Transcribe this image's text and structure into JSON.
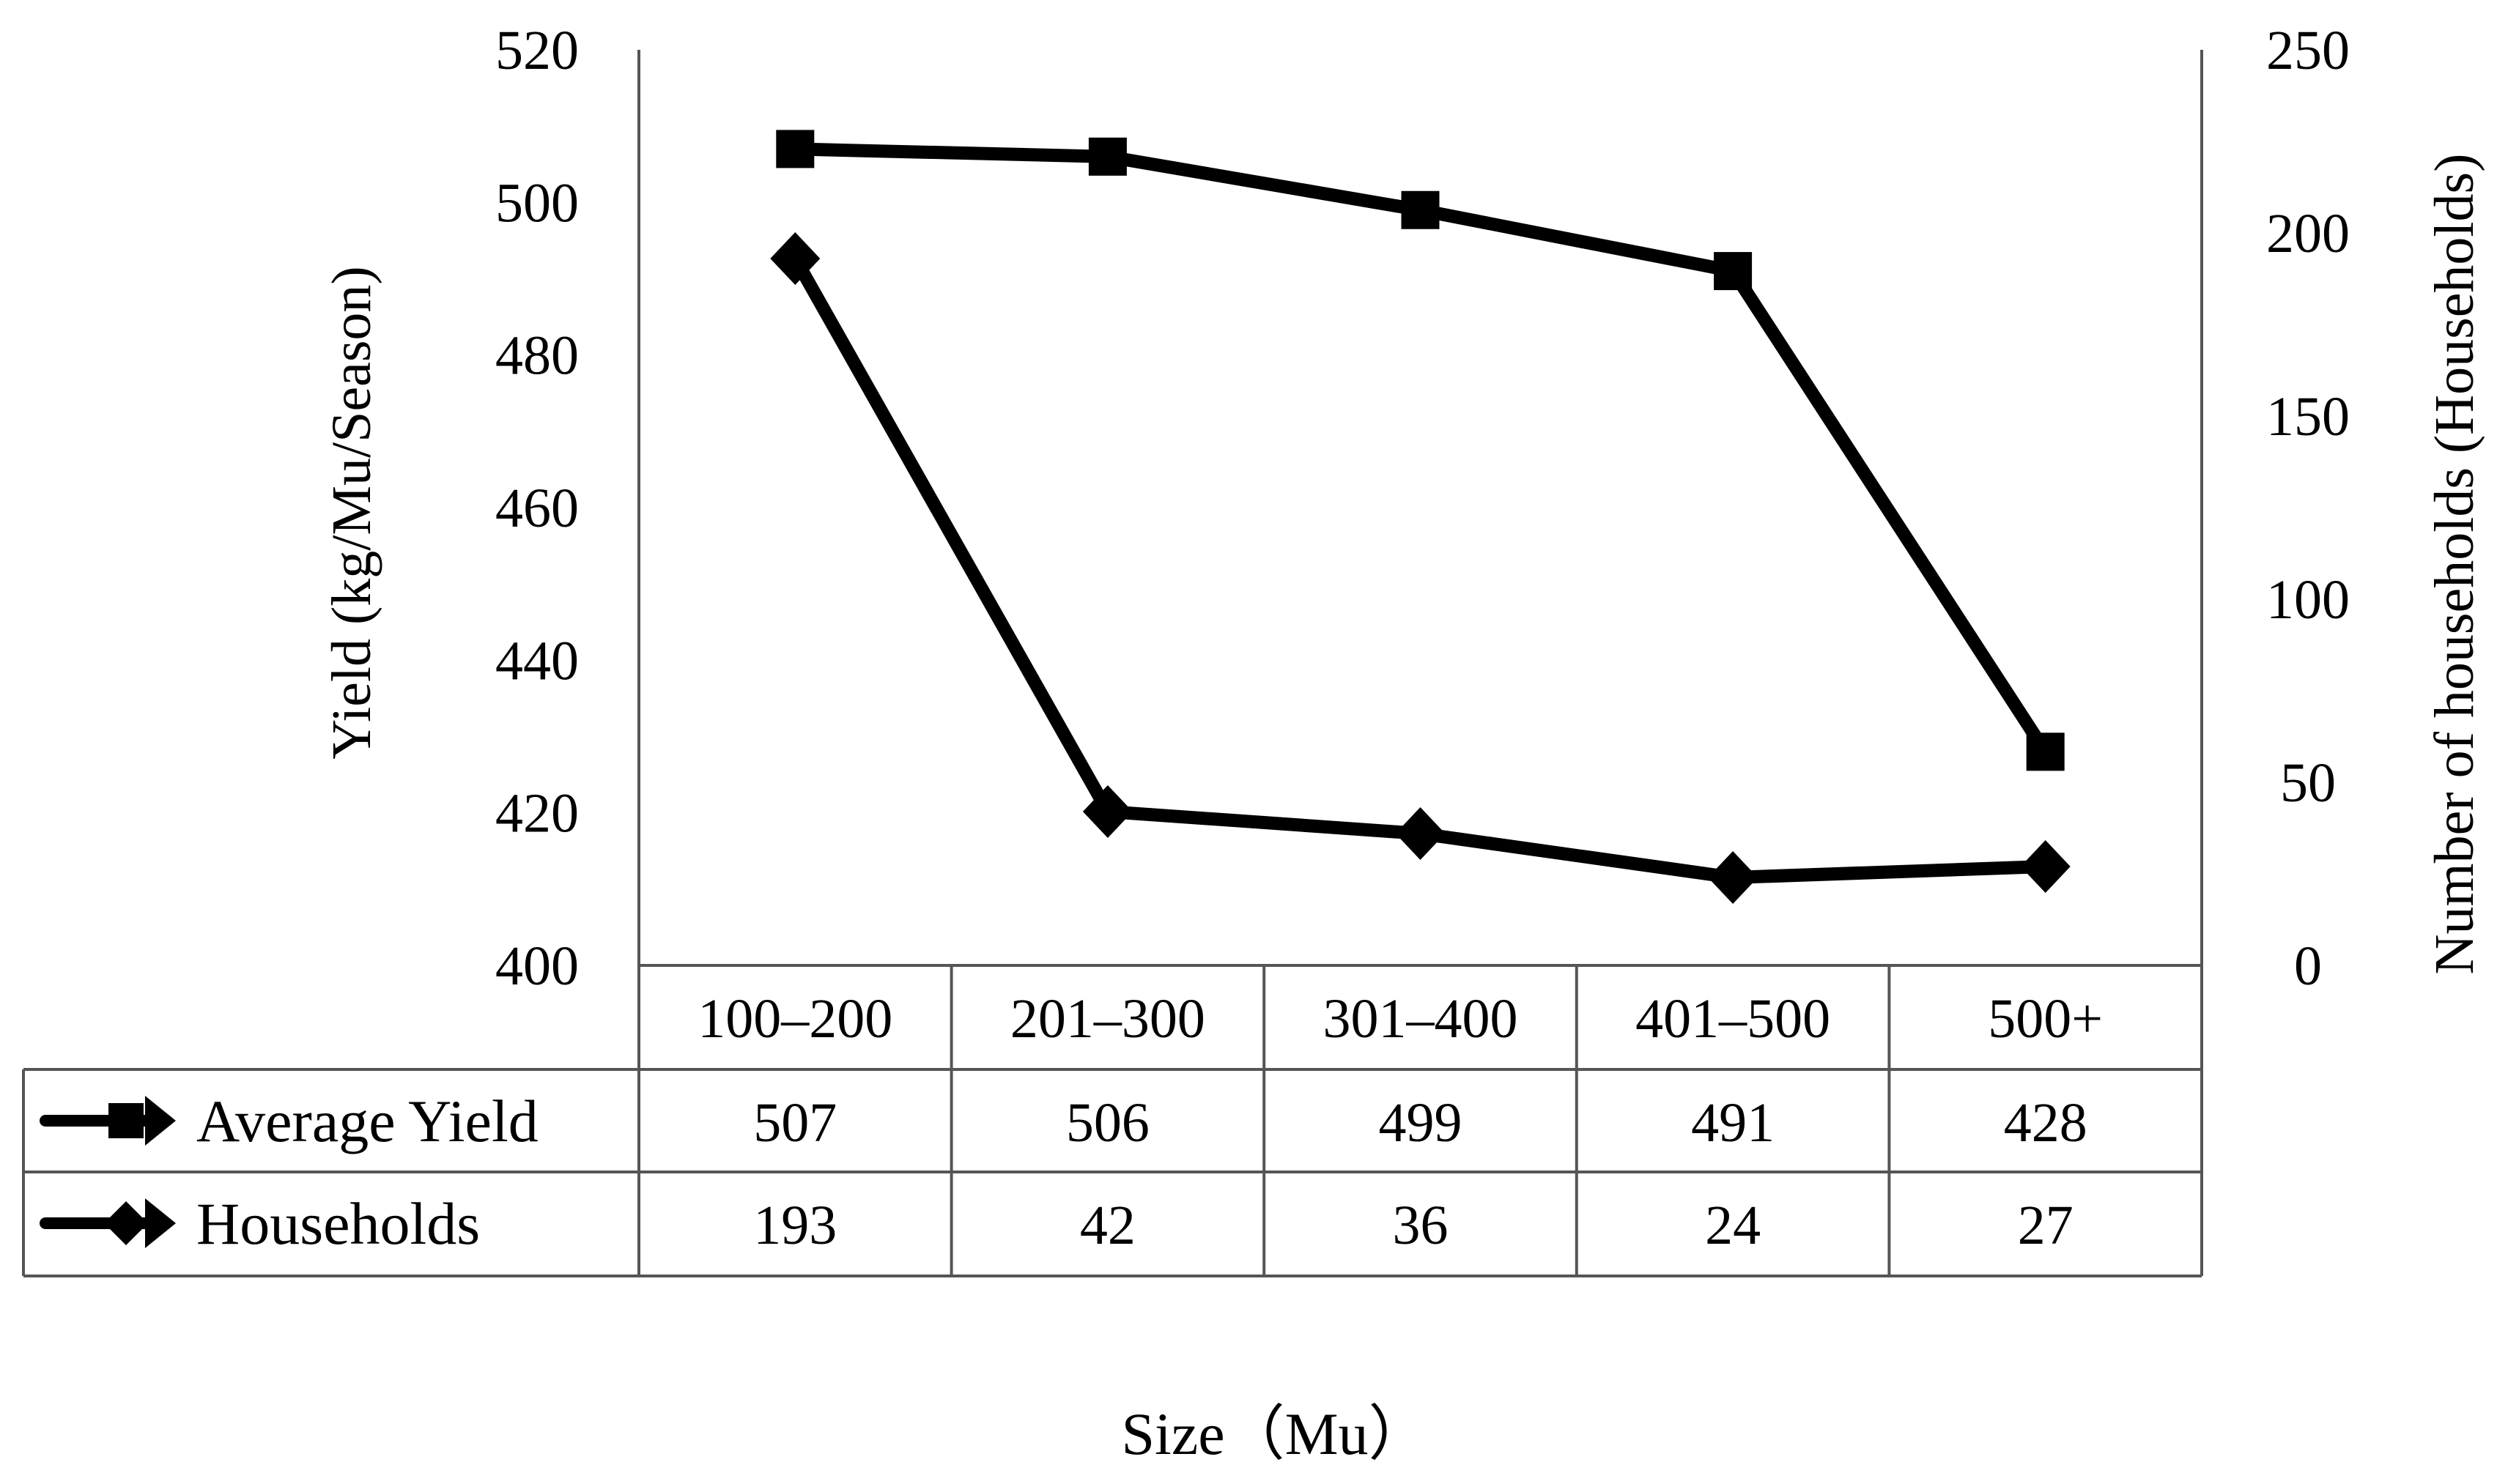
{
  "chart_data": {
    "type": "line",
    "categories": [
      "100–200",
      "201–300",
      "301–400",
      "401–500",
      "500+"
    ],
    "xlabel": "Size（Mu）",
    "y_left": {
      "label": "Yield (kg/Mu/Season)",
      "range": [
        400,
        520
      ],
      "ticks": [
        "400",
        "420",
        "440",
        "460",
        "480",
        "500",
        "520"
      ]
    },
    "y_right": {
      "label": "Number of households (Households)",
      "range": [
        0,
        250
      ],
      "ticks": [
        "0",
        "50",
        "100",
        "150",
        "200",
        "250"
      ]
    },
    "series": [
      {
        "name": "Average Yield",
        "axis": "left",
        "marker": "square",
        "values": [
          507,
          506,
          499,
          491,
          428
        ],
        "labels": [
          "507",
          "506",
          "499",
          "491",
          "428"
        ]
      },
      {
        "name": "Households",
        "axis": "right",
        "marker": "diamond",
        "values": [
          193,
          42,
          36,
          24,
          27
        ],
        "labels": [
          "193",
          "42",
          "36",
          "24",
          "27"
        ]
      }
    ],
    "data_table": true,
    "grid": false,
    "line_color": "#000000"
  }
}
